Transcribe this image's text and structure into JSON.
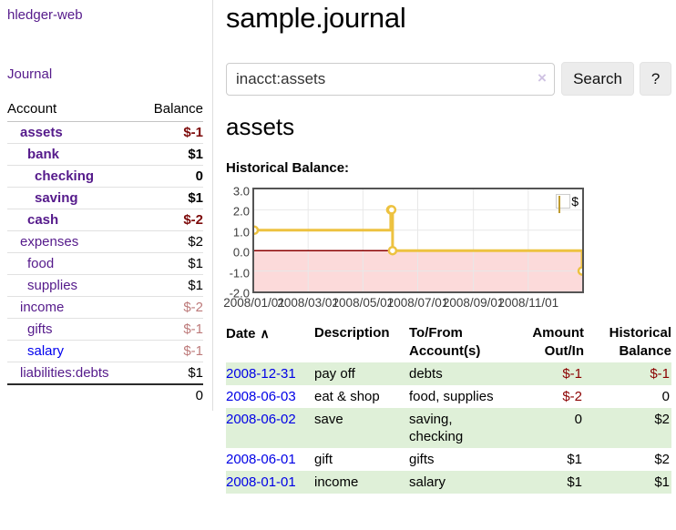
{
  "brand": "hledger-web",
  "nav": {
    "journal": "Journal"
  },
  "sidebar": {
    "columns": {
      "account": "Account",
      "balance": "Balance"
    },
    "rows": [
      {
        "account": "assets",
        "balance": "$-1",
        "indent": 1,
        "bold": true,
        "neg": "strong",
        "link": "purple"
      },
      {
        "account": "bank",
        "balance": "$1",
        "indent": 2,
        "bold": true,
        "neg": "none",
        "link": "purple"
      },
      {
        "account": "checking",
        "balance": "0",
        "indent": 3,
        "bold": true,
        "neg": "none",
        "link": "purple"
      },
      {
        "account": "saving",
        "balance": "$1",
        "indent": 3,
        "bold": true,
        "neg": "none",
        "link": "purple"
      },
      {
        "account": "cash",
        "balance": "$-2",
        "indent": 2,
        "bold": true,
        "neg": "strong",
        "link": "purple"
      },
      {
        "account": "expenses",
        "balance": "$2",
        "indent": 1,
        "bold": false,
        "neg": "none",
        "link": "purple"
      },
      {
        "account": "food",
        "balance": "$1",
        "indent": 2,
        "bold": false,
        "neg": "none",
        "link": "purple"
      },
      {
        "account": "supplies",
        "balance": "$1",
        "indent": 2,
        "bold": false,
        "neg": "none",
        "link": "purple"
      },
      {
        "account": "income",
        "balance": "$-2",
        "indent": 1,
        "bold": false,
        "neg": "soft",
        "link": "purple"
      },
      {
        "account": "gifts",
        "balance": "$-1",
        "indent": 2,
        "bold": false,
        "neg": "soft",
        "link": "purple"
      },
      {
        "account": "salary",
        "balance": "$-1",
        "indent": 2,
        "bold": false,
        "neg": "soft",
        "link": "blue"
      },
      {
        "account": "liabilities:debts",
        "balance": "$1",
        "indent": 1,
        "bold": false,
        "neg": "none",
        "link": "purple"
      }
    ],
    "total": "0"
  },
  "header": {
    "title": "sample.journal"
  },
  "search": {
    "value": "inacct:assets",
    "clear_icon": "×",
    "search_button": "Search",
    "help_button": "?"
  },
  "account_page": {
    "heading": "assets",
    "chart_title": "Historical Balance:"
  },
  "chart_data": {
    "type": "line",
    "step": true,
    "title": "Historical Balance",
    "series": [
      {
        "name": "$",
        "color": "#edc240",
        "points": [
          [
            "2008-01-01",
            1
          ],
          [
            "2008-06-01",
            2
          ],
          [
            "2008-06-02",
            2
          ],
          [
            "2008-06-03",
            0
          ],
          [
            "2008-12-31",
            -1
          ]
        ]
      }
    ],
    "x_range": [
      "2008-01-01",
      "2008-12-31"
    ],
    "x_ticks": [
      "2008/01/01",
      "2008/03/01",
      "2008/05/01",
      "2008/07/01",
      "2008/09/01",
      "2008/11/01"
    ],
    "y_ticks": [
      "3.0",
      "2.0",
      "1.0",
      "0.0",
      "-1.0",
      "-2.0"
    ],
    "ylim": [
      -2,
      3
    ],
    "legend": {
      "label": "$",
      "position": "top-right",
      "swatch_color": "#e8bd3a"
    },
    "colors": {
      "negative_fill": "#fcdada",
      "zero_line": "#8b0000",
      "grid": "#e8e8e8",
      "border": "#545454",
      "marker_fill": "#ffffff"
    }
  },
  "register": {
    "columns": {
      "date": "Date",
      "sort_icon": "∧",
      "description": "Description",
      "accounts": "To/From Account(s)",
      "amount": "Amount Out/In",
      "balance": "Historical Balance"
    },
    "rows": [
      {
        "date": "2008-12-31",
        "description": "pay off",
        "accounts": "debts",
        "amount": "$-1",
        "balance": "$-1",
        "amount_neg": true,
        "balance_neg": true
      },
      {
        "date": "2008-06-03",
        "description": "eat & shop",
        "accounts": "food, supplies",
        "amount": "$-2",
        "balance": "0",
        "amount_neg": true,
        "balance_neg": false
      },
      {
        "date": "2008-06-02",
        "description": "save",
        "accounts": "saving, checking",
        "amount": "0",
        "balance": "$2",
        "amount_neg": false,
        "balance_neg": false
      },
      {
        "date": "2008-06-01",
        "description": "gift",
        "accounts": "gifts",
        "amount": "$1",
        "balance": "$2",
        "amount_neg": false,
        "balance_neg": false
      },
      {
        "date": "2008-01-01",
        "description": "income",
        "accounts": "salary",
        "amount": "$1",
        "balance": "$1",
        "amount_neg": false,
        "balance_neg": false
      }
    ]
  }
}
